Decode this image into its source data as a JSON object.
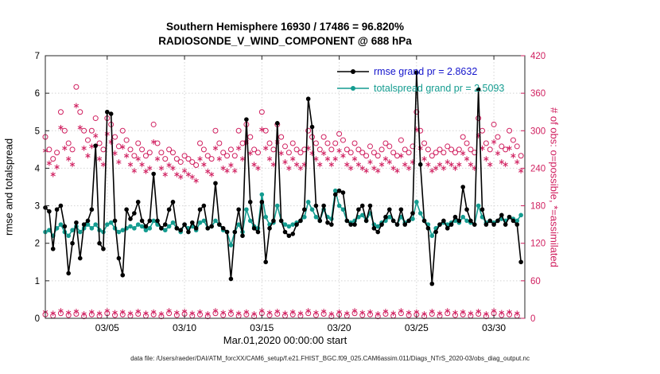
{
  "figure": {
    "title_line1": "Southern Hemisphere 16930 / 17486 = 96.820%",
    "title_line2": "RADIOSONDE_V_WIND_COMPONENT @ 688 hPa",
    "xlabel": "Mar.01,2020 00:00:00 start",
    "ylabel_left": "rmse and totalspread",
    "ylabel_right": "# of obs: o=possible, *=assimilated",
    "footer": "data file: /Users/raeder/DAI/ATM_forcXX/CAM6_setup/f.e21.FHIST_BGC.f09_025.CAM6assim.011/Diags_NTrS_2020-03/obs_diag_output.nc"
  },
  "colors": {
    "crimson": "#d01f5f",
    "teal": "#149c90",
    "rmse": "#000000",
    "grid": "#d4d4d4",
    "axis": "#262626",
    "legend_rmse_text": "#1414cc"
  },
  "chart_data": {
    "type": "line",
    "x_start_days": 0,
    "x_end_days": 31,
    "x_ticks": [
      {
        "day": 4,
        "label": "03/05"
      },
      {
        "day": 9,
        "label": "03/10"
      },
      {
        "day": 14,
        "label": "03/15"
      },
      {
        "day": 19,
        "label": "03/20"
      },
      {
        "day": 24,
        "label": "03/25"
      },
      {
        "day": 29,
        "label": "03/30"
      }
    ],
    "y_left": {
      "min": 0,
      "max": 7,
      "ticks": [
        0,
        1,
        2,
        3,
        4,
        5,
        6,
        7
      ],
      "label": "rmse and totalspread"
    },
    "y_right": {
      "min": 0,
      "max": 420,
      "ticks": [
        0,
        60,
        120,
        180,
        240,
        300,
        360,
        420
      ],
      "label": "# of obs: o=possible, *=assimilated"
    },
    "rmse_grand_prior": 2.8632,
    "totalspread_grand_prior": 2.5093,
    "obs_possible_total": 17486,
    "obs_used_total": 16930,
    "obs_used_percent": 96.82,
    "legend": [
      {
        "label": "rmse grand pr = 2.8632",
        "line_color": "#000000",
        "marker_color": "#000000",
        "text_color": "#1414cc"
      },
      {
        "label": "totalspread grand pr = 2.5093",
        "line_color": "#149c90",
        "marker_color": "#149c90",
        "text_color": "#149c90"
      }
    ],
    "series": [
      {
        "name": "num-obs-possible",
        "axis": "right",
        "marker": "circle",
        "line": false,
        "color": "#d01f5f",
        "step_days": 0.25,
        "values": [
          290,
          270,
          255,
          265,
          330,
          300,
          280,
          270,
          370,
          330,
          300,
          285,
          300,
          320,
          280,
          270,
          320,
          310,
          290,
          275,
          300,
          285,
          270,
          260,
          280,
          270,
          260,
          265,
          310,
          280,
          265,
          255,
          270,
          265,
          255,
          250,
          260,
          255,
          250,
          245,
          280,
          270,
          260,
          255,
          300,
          280,
          265,
          260,
          270,
          260,
          300,
          280,
          310,
          290,
          270,
          265,
          330,
          300,
          280,
          270,
          310,
          290,
          275,
          265,
          280,
          270,
          265,
          270,
          300,
          290,
          280,
          270,
          290,
          280,
          270,
          280,
          295,
          285,
          270,
          265,
          280,
          270,
          265,
          260,
          275,
          265,
          260,
          270,
          280,
          275,
          265,
          260,
          285,
          270,
          265,
          275,
          330,
          300,
          280,
          270,
          260,
          265,
          270,
          265,
          275,
          270,
          265,
          270,
          290,
          280,
          270,
          265,
          320,
          300,
          280,
          270,
          310,
          290,
          275,
          270,
          300,
          285,
          275,
          260
        ]
      },
      {
        "name": "num-obs-assimilated",
        "axis": "right",
        "marker": "asterisk",
        "line": false,
        "color": "#d01f5f",
        "step_days": 0.25,
        "values": [
          268,
          248,
          230,
          242,
          305,
          272,
          255,
          246,
          340,
          305,
          272,
          260,
          275,
          292,
          255,
          246,
          295,
          282,
          264,
          250,
          274,
          260,
          246,
          236,
          255,
          246,
          235,
          240,
          282,
          255,
          240,
          230,
          245,
          240,
          230,
          226,
          236,
          230,
          226,
          220,
          255,
          246,
          235,
          230,
          272,
          255,
          240,
          236,
          245,
          236,
          272,
          255,
          282,
          264,
          246,
          240,
          302,
          272,
          255,
          246,
          282,
          264,
          250,
          240,
          255,
          246,
          240,
          246,
          272,
          264,
          255,
          246,
          264,
          255,
          246,
          255,
          268,
          260,
          246,
          240,
          255,
          246,
          240,
          236,
          250,
          240,
          236,
          246,
          255,
          250,
          240,
          236,
          260,
          246,
          240,
          250,
          302,
          272,
          255,
          246,
          236,
          240,
          246,
          240,
          250,
          246,
          240,
          246,
          264,
          255,
          246,
          240,
          292,
          272,
          255,
          246,
          282,
          264,
          250,
          246,
          272,
          260,
          250,
          236
        ]
      },
      {
        "name": "num-obs-possible-low",
        "axis": "right",
        "marker": "circle",
        "line": false,
        "color": "#d01f5f",
        "step_days": 0.5,
        "values": [
          6,
          4,
          8,
          5,
          7,
          3,
          6,
          4,
          8,
          5,
          6,
          4,
          7,
          4,
          6,
          3,
          8,
          5,
          7,
          4,
          6,
          3,
          8,
          5,
          7,
          4,
          6,
          3,
          8,
          5,
          7,
          4,
          6,
          4,
          8,
          5,
          7,
          3,
          6,
          4,
          8,
          5,
          6,
          3,
          7,
          4,
          8,
          5,
          6,
          3,
          7,
          4,
          8,
          5,
          6,
          4,
          7,
          3,
          8,
          5,
          6,
          4
        ]
      },
      {
        "name": "num-obs-assimilated-low",
        "axis": "right",
        "marker": "asterisk",
        "line": false,
        "color": "#d01f5f",
        "step_days": 0.5,
        "values": [
          10,
          8,
          12,
          9,
          11,
          7,
          10,
          8,
          12,
          9,
          10,
          8,
          11,
          8,
          10,
          7,
          12,
          9,
          11,
          8,
          10,
          7,
          12,
          9,
          11,
          8,
          10,
          7,
          12,
          9,
          11,
          8,
          10,
          8,
          12,
          9,
          11,
          7,
          10,
          8,
          12,
          9,
          10,
          7,
          11,
          8,
          12,
          9,
          10,
          7,
          11,
          8,
          12,
          9,
          10,
          8,
          11,
          7,
          12,
          9,
          10,
          8
        ]
      },
      {
        "name": "totalspread",
        "axis": "left",
        "marker": "dot",
        "line": true,
        "color": "#149c90",
        "grand_prior": 2.5093,
        "step_days": 0.25,
        "values": [
          2.3,
          2.35,
          2.2,
          2.4,
          2.5,
          2.3,
          2.2,
          2.35,
          2.45,
          2.3,
          2.4,
          2.5,
          2.4,
          2.5,
          2.35,
          2.3,
          2.5,
          2.55,
          2.4,
          2.3,
          2.35,
          2.4,
          2.45,
          2.4,
          2.5,
          2.45,
          2.35,
          2.4,
          2.6,
          2.5,
          2.4,
          2.35,
          2.45,
          2.55,
          2.4,
          2.3,
          2.5,
          2.4,
          2.45,
          2.35,
          2.55,
          2.6,
          2.4,
          2.45,
          2.6,
          2.5,
          2.35,
          2.3,
          1.95,
          2.3,
          2.5,
          2.3,
          2.9,
          2.6,
          2.45,
          2.4,
          3.3,
          2.7,
          2.5,
          2.55,
          3.0,
          2.6,
          2.5,
          2.45,
          2.5,
          2.55,
          2.6,
          2.7,
          3.1,
          2.9,
          2.7,
          2.6,
          2.9,
          2.7,
          2.65,
          3.4,
          3.0,
          2.9,
          2.6,
          2.55,
          2.6,
          2.7,
          2.75,
          2.6,
          2.8,
          2.5,
          2.45,
          2.55,
          2.6,
          2.7,
          2.6,
          2.5,
          2.7,
          2.55,
          2.6,
          2.65,
          3.1,
          2.8,
          2.6,
          2.5,
          2.2,
          2.4,
          2.5,
          2.55,
          2.5,
          2.55,
          2.6,
          2.55,
          2.7,
          2.6,
          2.55,
          2.5,
          3.0,
          2.7,
          2.55,
          2.6,
          2.55,
          2.6,
          2.65,
          2.6,
          2.7,
          2.65,
          2.6,
          2.75
        ]
      },
      {
        "name": "rmse",
        "axis": "left",
        "marker": "dot",
        "line": true,
        "color": "#000000",
        "grand_prior": 2.8632,
        "step_days": 0.25,
        "values": [
          2.95,
          2.85,
          1.85,
          2.9,
          3.0,
          2.45,
          1.2,
          2.0,
          2.55,
          1.6,
          2.5,
          2.6,
          2.9,
          4.6,
          2.0,
          1.85,
          5.5,
          5.45,
          2.6,
          1.6,
          1.15,
          2.9,
          2.65,
          2.8,
          3.1,
          2.6,
          2.45,
          2.6,
          3.85,
          2.6,
          2.4,
          2.5,
          2.9,
          3.1,
          2.4,
          2.35,
          2.5,
          2.3,
          2.55,
          2.4,
          2.9,
          3.0,
          2.4,
          2.45,
          3.6,
          2.5,
          2.4,
          2.3,
          1.05,
          2.3,
          2.9,
          2.2,
          5.3,
          3.1,
          2.4,
          2.3,
          3.1,
          1.5,
          2.4,
          2.6,
          5.2,
          2.6,
          2.3,
          2.2,
          2.25,
          2.5,
          2.6,
          2.9,
          5.85,
          5.1,
          3.0,
          2.6,
          3.0,
          2.55,
          2.5,
          3.3,
          3.4,
          3.35,
          2.6,
          2.5,
          2.5,
          2.9,
          3.0,
          2.6,
          3.0,
          2.4,
          2.3,
          2.5,
          2.7,
          2.9,
          2.6,
          2.5,
          2.9,
          2.5,
          2.6,
          2.8,
          6.55,
          4.1,
          2.6,
          2.4,
          0.92,
          2.3,
          2.5,
          2.6,
          2.4,
          2.5,
          2.7,
          2.6,
          3.5,
          2.9,
          2.6,
          2.5,
          6.1,
          2.9,
          2.5,
          2.6,
          2.5,
          2.6,
          2.75,
          2.5,
          2.7,
          2.6,
          2.5,
          1.5
        ]
      }
    ]
  }
}
